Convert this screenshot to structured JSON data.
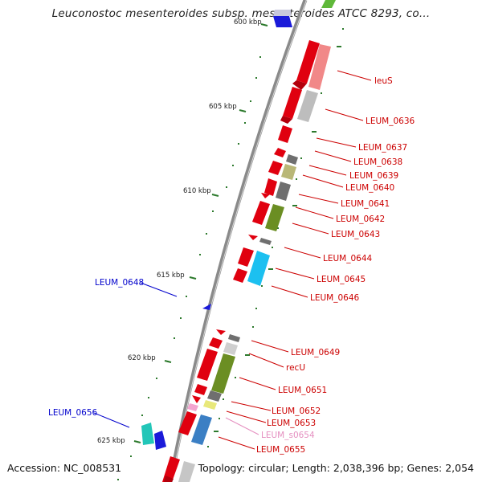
{
  "title": "Leuconostoc mesenteroides subsp. mesenteroides ATCC 8293, co...",
  "footer": {
    "accession": "Accession: NC_008531",
    "topology": "Topology: circular; Length: 2,038,396 bp; Genes: 2,054"
  },
  "colors": {
    "backbone": "#8a8a8a",
    "forward_label": "#cc0000",
    "reverse_label": "#0000cc",
    "rna_label": "#e58fc0",
    "tick": "#2d7a2d"
  },
  "scale": {
    "partial_top": "600 kbp",
    "ticks": [
      "605 kbp",
      "610 kbp",
      "615 kbp",
      "620 kbp",
      "625 kbp"
    ]
  },
  "genes_right": [
    {
      "name": "leuS"
    },
    {
      "name": "LEUM_0636"
    },
    {
      "name": "LEUM_0637"
    },
    {
      "name": "LEUM_0638"
    },
    {
      "name": "LEUM_0639"
    },
    {
      "name": "LEUM_0640"
    },
    {
      "name": "LEUM_0641"
    },
    {
      "name": "LEUM_0642"
    },
    {
      "name": "LEUM_0643"
    },
    {
      "name": "LEUM_0644"
    },
    {
      "name": "LEUM_0645"
    },
    {
      "name": "LEUM_0646"
    },
    {
      "name": "LEUM_0649"
    },
    {
      "name": "recU"
    },
    {
      "name": "LEUM_0651"
    },
    {
      "name": "LEUM_0652"
    },
    {
      "name": "LEUM_0653"
    },
    {
      "name": "LEUM_s0654"
    },
    {
      "name": "LEUM_0655"
    }
  ],
  "genes_left": [
    {
      "name": "LEUM_0648"
    },
    {
      "name": "LEUM_0656"
    }
  ]
}
